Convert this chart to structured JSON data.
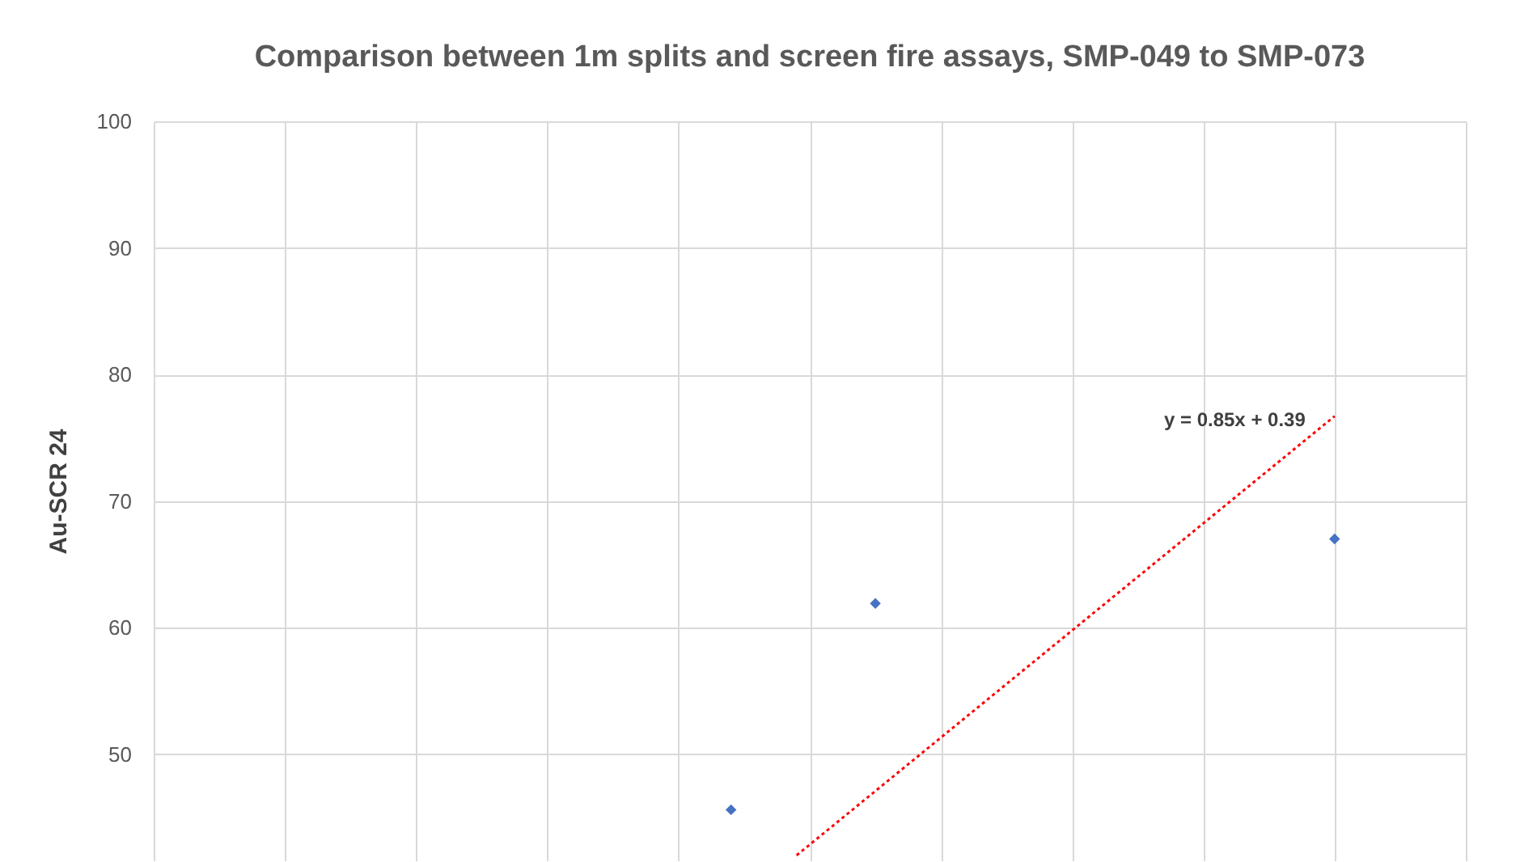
{
  "chart_data": {
    "type": "scatter",
    "title": "Comparison between 1m splits and screen fire assays, SMP-049 to SMP-073",
    "ylabel": "Au-SCR 24",
    "categories": [
      null,
      null,
      null,
      null,
      null,
      null,
      null,
      null,
      null,
      null,
      null,
      null,
      null,
      null,
      null,
      null,
      null,
      null,
      null,
      null,
      null,
      null,
      null,
      null,
      null,
      null,
      null,
      null,
      null,
      null,
      null,
      null,
      null,
      null,
      null,
      null,
      null,
      null,
      null,
      null,
      null,
      null,
      null,
      null,
      null,
      null,
      null,
      null,
      null,
      null,
      null,
      null,
      null,
      null,
      null,
      null,
      null,
      null,
      null,
      null,
      null,
      null,
      null,
      null,
      null,
      null,
      null,
      null,
      null,
      null,
      null,
      null,
      null,
      null,
      null,
      null,
      null,
      null,
      null,
      null,
      null,
      null,
      null,
      null,
      null,
      null,
      null,
      null,
      null,
      null,
      null,
      null,
      null,
      null,
      null,
      null,
      null,
      null,
      null,
      null,
      null
    ],
    "ylim": [
      41.6,
      100
    ],
    "yticks": [
      50,
      60,
      70,
      80,
      90,
      100
    ],
    "grid": true,
    "series": [
      {
        "type": "scatter",
        "color": "#4472c4",
        "marker": "diamond",
        "values": [
          null,
          null,
          null,
          null,
          null,
          null,
          null,
          null,
          null,
          null,
          null,
          null,
          null,
          null,
          null,
          null,
          null,
          null,
          null,
          null,
          null,
          null,
          null,
          null,
          null,
          null,
          null,
          null,
          null,
          null,
          null,
          null,
          null,
          null,
          null,
          null,
          null,
          null,
          null,
          null,
          null,
          null,
          null,
          null,
          45.6,
          null,
          null,
          null,
          null,
          null,
          null,
          null,
          null,
          null,
          null,
          61.9,
          null,
          null,
          null,
          null,
          null,
          null,
          null,
          null,
          null,
          null,
          null,
          null,
          null,
          null,
          null,
          null,
          null,
          null,
          null,
          null,
          null,
          null,
          null,
          null,
          null,
          null,
          null,
          null,
          null,
          null,
          null,
          null,
          null,
          null,
          67.0,
          null,
          null,
          null,
          null,
          null,
          null,
          null,
          null,
          null,
          null
        ]
      },
      {
        "type": "line",
        "color": "#ff0000",
        "line_style": "dotted",
        "marker": "none",
        "values": [
          null,
          null,
          null,
          null,
          null,
          null,
          null,
          null,
          null,
          null,
          null,
          null,
          null,
          null,
          null,
          null,
          null,
          null,
          null,
          null,
          null,
          null,
          null,
          null,
          null,
          null,
          null,
          null,
          null,
          null,
          null,
          null,
          null,
          null,
          null,
          null,
          null,
          null,
          null,
          null,
          null,
          null,
          null,
          null,
          null,
          null,
          null,
          null,
          null,
          42.0,
          null,
          null,
          null,
          null,
          null,
          null,
          null,
          null,
          null,
          null,
          null,
          null,
          null,
          null,
          null,
          null,
          null,
          null,
          null,
          null,
          null,
          null,
          null,
          null,
          null,
          null,
          null,
          null,
          null,
          null,
          null,
          null,
          null,
          null,
          null,
          null,
          null,
          null,
          null,
          null,
          76.7,
          null,
          null,
          null,
          null,
          null,
          null,
          null,
          null,
          null,
          null
        ]
      }
    ],
    "annotations": [
      "y = 0.85x + 0.39"
    ]
  }
}
